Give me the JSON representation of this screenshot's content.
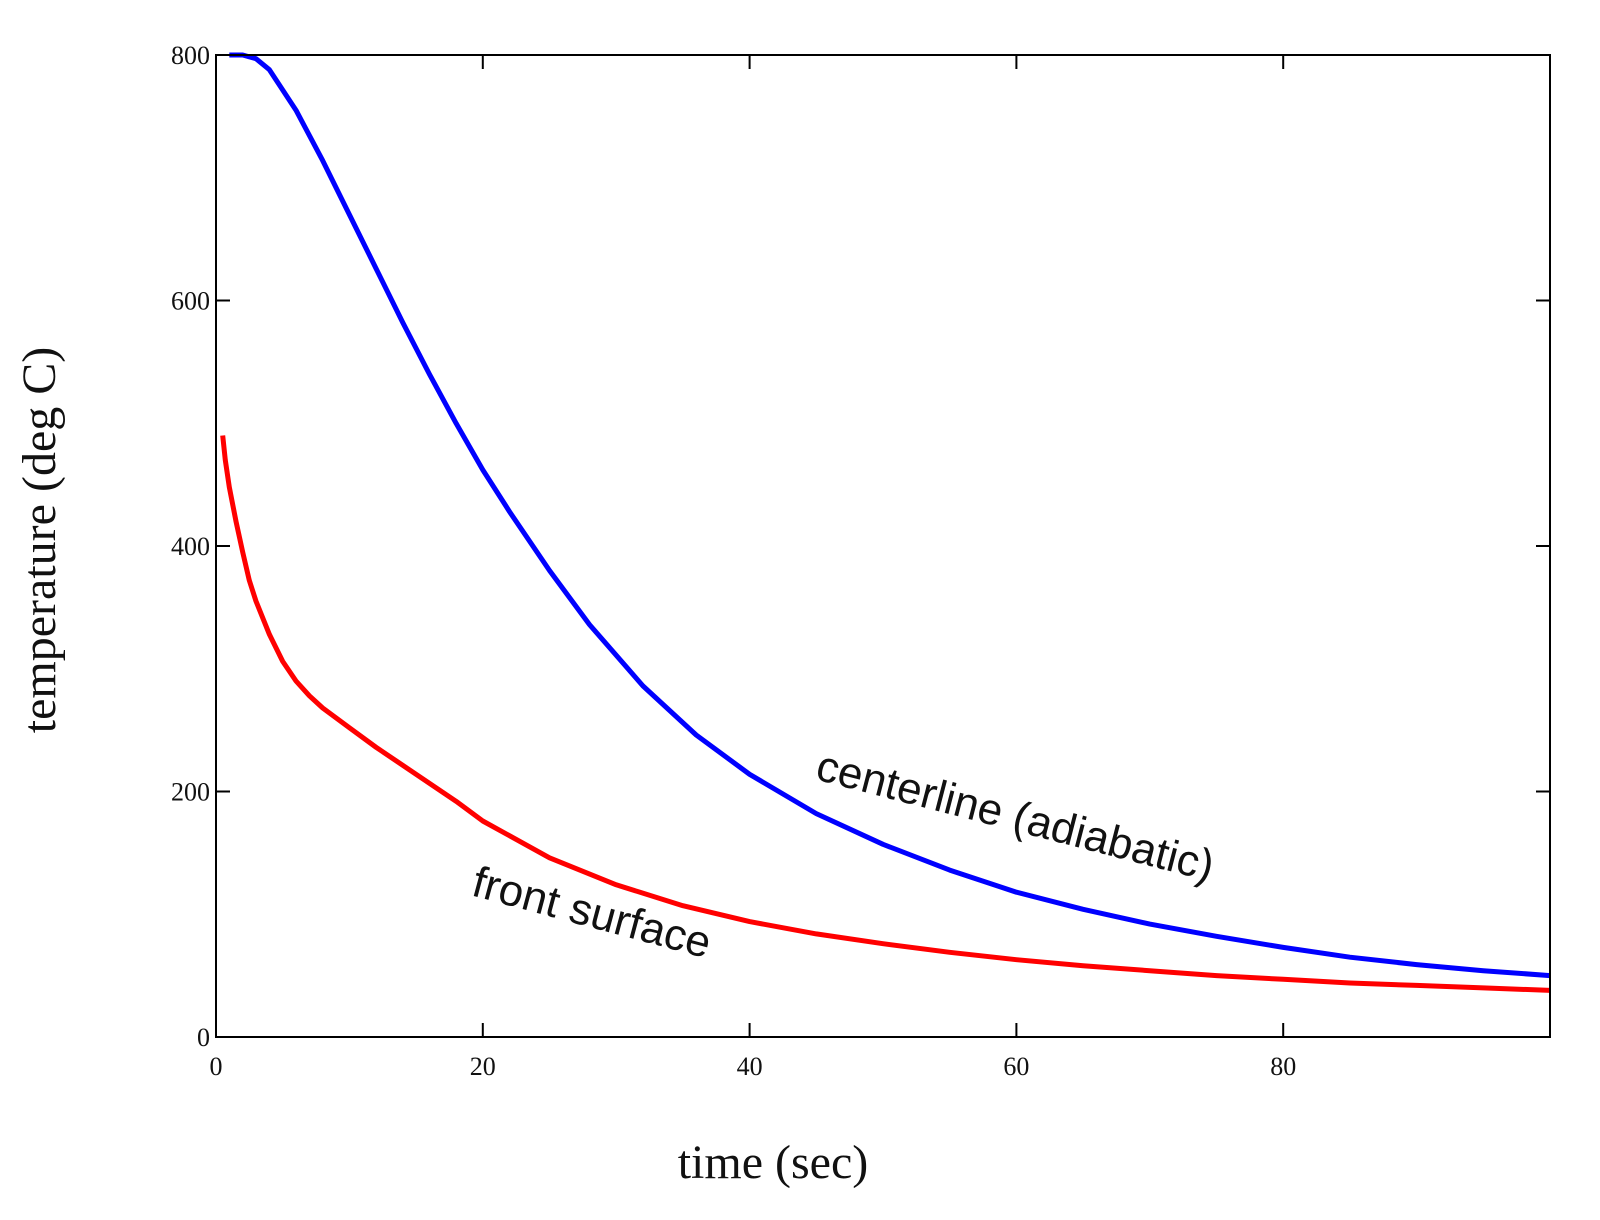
{
  "chart_data": {
    "type": "line",
    "xlabel": "time (sec)",
    "ylabel": "temperature (deg C)",
    "xlim": [
      0,
      100
    ],
    "ylim": [
      0,
      800
    ],
    "xticks": [
      0,
      20,
      40,
      60,
      80
    ],
    "yticks": [
      0,
      200,
      400,
      600,
      800
    ],
    "grid": false,
    "series": [
      {
        "name": "centerline (adiabatic)",
        "color": "#0000ff",
        "x": [
          1,
          2,
          3,
          4,
          6,
          8,
          10,
          12,
          14,
          16,
          18,
          20,
          22,
          25,
          28,
          32,
          36,
          40,
          45,
          50,
          55,
          60,
          65,
          70,
          75,
          80,
          85,
          90,
          95,
          100
        ],
        "y": [
          800,
          800,
          797,
          788,
          755,
          714,
          670,
          626,
          582,
          540,
          500,
          462,
          428,
          380,
          336,
          286,
          246,
          214,
          182,
          157,
          136,
          118,
          104,
          92,
          82,
          73,
          65,
          59,
          54,
          50
        ]
      },
      {
        "name": "front surface",
        "color": "#ff0000",
        "x": [
          0.5,
          0.7,
          1,
          1.5,
          2,
          2.5,
          3,
          4,
          5,
          6,
          7,
          8,
          10,
          12,
          15,
          18,
          20,
          25,
          30,
          35,
          40,
          45,
          50,
          55,
          60,
          65,
          70,
          75,
          80,
          85,
          90,
          95,
          100
        ],
        "y": [
          490,
          470,
          448,
          420,
          395,
          372,
          355,
          328,
          306,
          290,
          278,
          268,
          252,
          236,
          214,
          192,
          176,
          146,
          124,
          107,
          94,
          84,
          76,
          69,
          63,
          58,
          54,
          50,
          47,
          44,
          42,
          40,
          38
        ]
      }
    ],
    "annotations": [
      {
        "text": "centerline (adiabatic)",
        "series": 0
      },
      {
        "text": "front surface",
        "series": 1
      }
    ]
  }
}
